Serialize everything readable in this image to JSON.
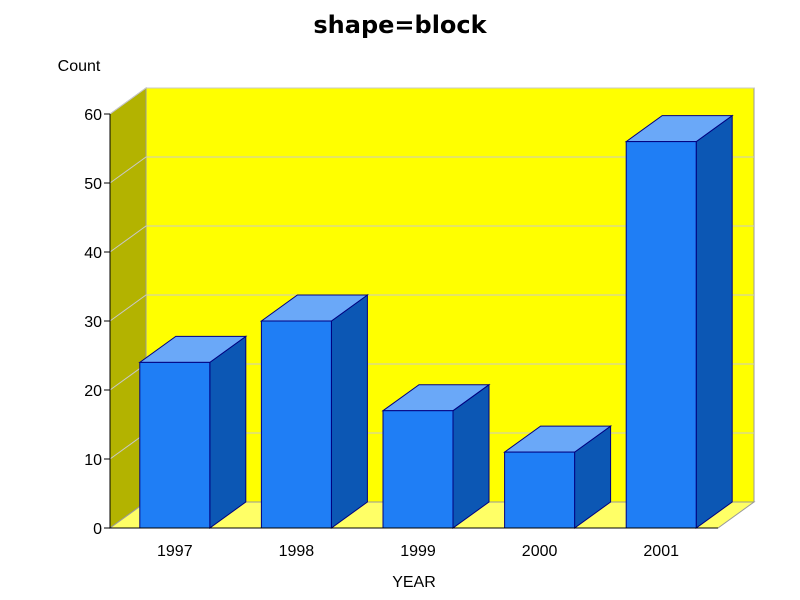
{
  "chart_data": {
    "type": "bar",
    "title": "shape=block",
    "xlabel": "YEAR",
    "ylabel": "Count",
    "categories": [
      "1997",
      "1998",
      "1999",
      "2000",
      "2001"
    ],
    "values": [
      24,
      30,
      17,
      11,
      56
    ],
    "ylim": [
      0,
      60
    ],
    "yticks": [
      0,
      10,
      20,
      30,
      40,
      50,
      60
    ],
    "grid": true,
    "legend": "none",
    "colors": {
      "back_wall": "#ffff00",
      "side_wall": "#b3b300",
      "floor": "#ffff66",
      "bar_front": "#1f7ef5",
      "bar_top": "#6aa8f8",
      "bar_side": "#0c57b4",
      "bar_edge": "#000080",
      "gridline": "#c8c8c8"
    }
  }
}
